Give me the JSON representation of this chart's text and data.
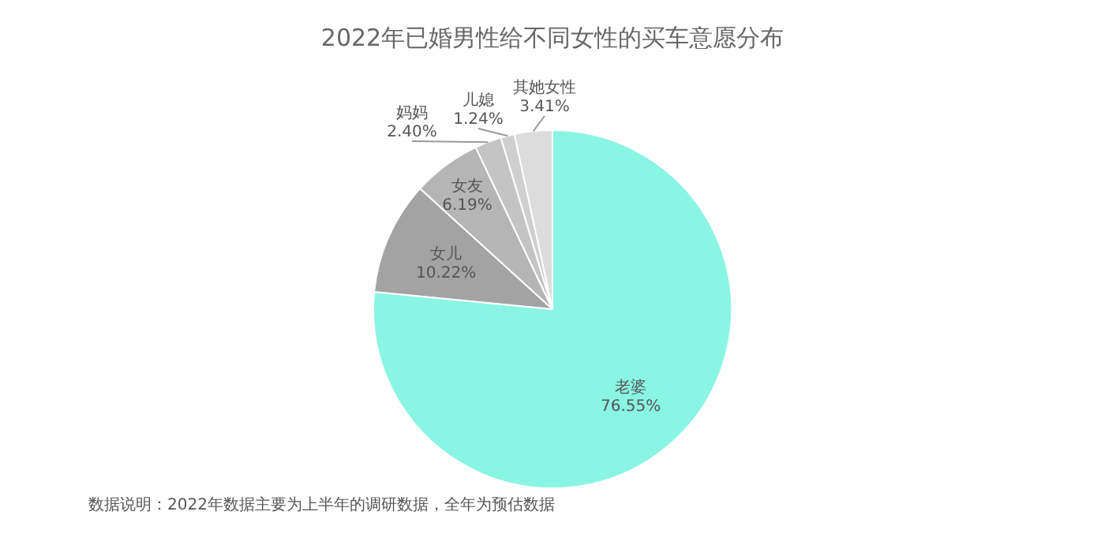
{
  "chart_data": {
    "type": "pie",
    "title": "2022年已婚男性给不同女性的买车意愿分布",
    "categories": [
      "老婆",
      "女儿",
      "女友",
      "妈妈",
      "儿媳",
      "其她女性"
    ],
    "values": [
      76.55,
      10.22,
      6.19,
      2.4,
      1.24,
      3.41
    ],
    "colors": [
      "#8af5e3",
      "#a3a3a3",
      "#b5b5b5",
      "#c4c4c4",
      "#cfcfcf",
      "#dcdcdc"
    ],
    "value_labels": [
      "76.55%",
      "10.22%",
      "6.19%",
      "2.40%",
      "1.24%",
      "3.41%"
    ],
    "legend": false,
    "annotations": [
      "数据说明：2022年数据主要为上半年的调研数据，全年为预估数据"
    ]
  }
}
